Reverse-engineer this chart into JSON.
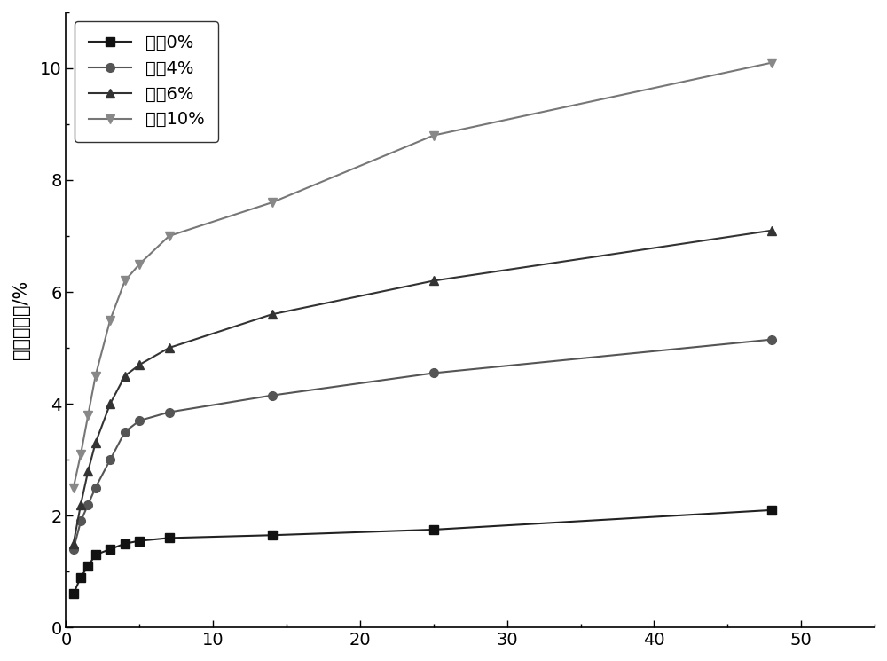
{
  "title": "",
  "xlabel": "",
  "ylabel": "降低含水量/%",
  "xlim": [
    0,
    55
  ],
  "ylim": [
    0,
    11
  ],
  "xticks": [
    0,
    10,
    20,
    30,
    40,
    50
  ],
  "yticks": [
    0,
    2,
    4,
    6,
    8,
    10
  ],
  "series": [
    {
      "label": "石瀇0%",
      "color": "#222222",
      "marker": "s",
      "x": [
        0.5,
        1,
        1.5,
        2,
        3,
        4,
        5,
        7,
        14,
        25,
        48
      ],
      "y": [
        0.6,
        0.9,
        1.1,
        1.3,
        1.4,
        1.5,
        1.55,
        1.6,
        1.65,
        1.75,
        2.1
      ]
    },
    {
      "label": "石瀇4%",
      "color": "#555555",
      "marker": "o",
      "x": [
        0.5,
        1,
        1.5,
        2,
        3,
        4,
        5,
        7,
        14,
        25,
        48
      ],
      "y": [
        1.4,
        1.9,
        2.2,
        2.5,
        3.0,
        3.5,
        3.7,
        3.85,
        4.15,
        4.55,
        5.15
      ]
    },
    {
      "label": "石瀇6%",
      "color": "#333333",
      "marker": "^",
      "x": [
        0.5,
        1,
        1.5,
        2,
        3,
        4,
        5,
        7,
        14,
        25,
        48
      ],
      "y": [
        1.5,
        2.2,
        2.8,
        3.3,
        4.0,
        4.5,
        4.7,
        5.0,
        5.6,
        6.2,
        7.1
      ]
    },
    {
      "label": "石灰10%",
      "color": "#777777",
      "marker": "v",
      "x": [
        0.5,
        1,
        1.5,
        2,
        3,
        4,
        5,
        7,
        14,
        25,
        48
      ],
      "y": [
        2.5,
        3.1,
        3.8,
        4.5,
        5.5,
        6.2,
        6.5,
        7.0,
        7.6,
        8.8,
        10.1
      ]
    }
  ],
  "legend_loc": "upper left",
  "figure_facecolor": "#ffffff",
  "axes_facecolor": "#ffffff",
  "linewidth": 1.5,
  "markersize": 7,
  "font_size": 14,
  "label_font_size": 15,
  "marker_colors": [
    "#111111",
    "#555555",
    "#333333",
    "#888888"
  ]
}
